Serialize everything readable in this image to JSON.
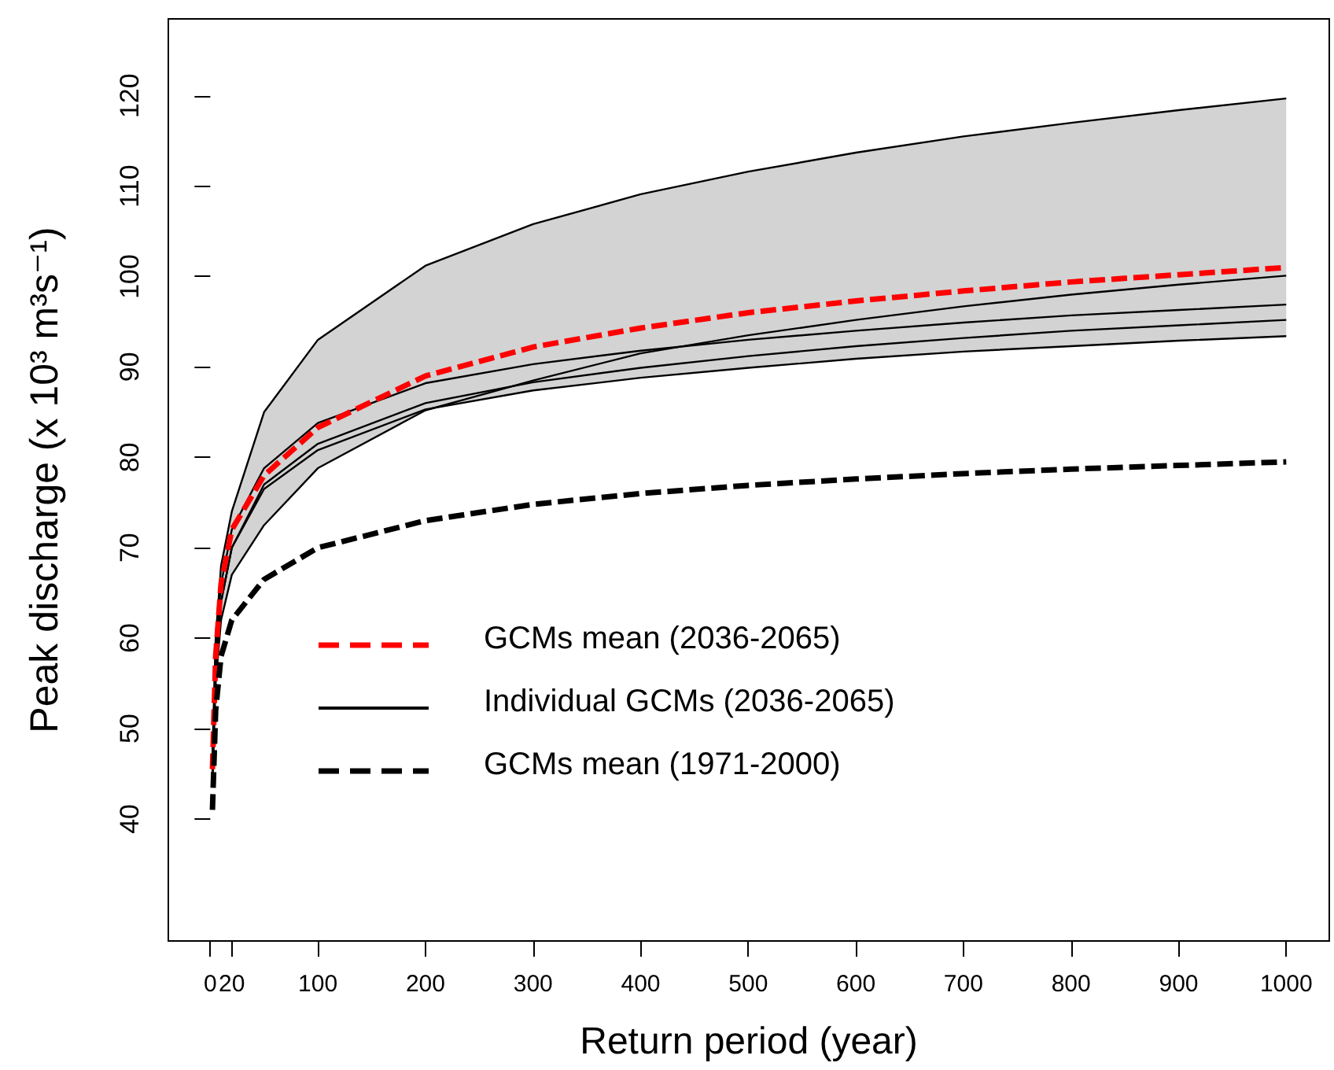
{
  "chart_data": {
    "type": "line",
    "xlabel": "Return period (year)",
    "ylabel": "Peak discharge (x 10³ m³s⁻¹)",
    "x": [
      2,
      5,
      10,
      20,
      50,
      100,
      200,
      300,
      400,
      500,
      600,
      700,
      800,
      900,
      1000
    ],
    "xlim": [
      -39,
      1040
    ],
    "xticks": [
      0,
      20,
      100,
      200,
      300,
      400,
      500,
      600,
      700,
      800,
      900,
      1000
    ],
    "ylim": [
      26.5,
      128.5
    ],
    "yticks": [
      40,
      50,
      60,
      70,
      80,
      90,
      100,
      110,
      120
    ],
    "grid": false,
    "legend": "center left",
    "marker": "none",
    "series": [
      {
        "name": "GCMs mean (2036-2065)",
        "color": "#ff0000",
        "line_style": "dashed",
        "values": [
          45.5,
          58,
          66,
          72,
          78,
          83.3,
          89,
          92.2,
          94.3,
          96,
          97.3,
          98.4,
          99.4,
          100.2,
          101
        ],
        "lower": [
          44,
          55,
          62,
          67,
          72.5,
          78.8,
          85.2,
          87.4,
          88.8,
          89.9,
          90.9,
          91.7,
          92.3,
          92.9,
          93.4
        ],
        "upper": [
          47,
          60,
          68,
          74,
          85,
          93,
          101.2,
          105.8,
          109.1,
          111.6,
          113.7,
          115.5,
          117,
          118.4,
          119.7
        ]
      },
      {
        "name": "Individual GCMs (2036-2065)",
        "color": "#000000",
        "line_style": "solid",
        "values": [
          47,
          60,
          68,
          74,
          85,
          93,
          101.2,
          105.8,
          109.1,
          111.6,
          113.7,
          115.5,
          117,
          118.4,
          119.7
        ]
      },
      {
        "color": "#000000",
        "line_style": "solid",
        "values": [
          44,
          55,
          62,
          67,
          72.5,
          78.8,
          85.2,
          88.5,
          91.5,
          93.5,
          95.2,
          96.7,
          98,
          99.1,
          100.1
        ]
      },
      {
        "color": "#000000",
        "line_style": "solid",
        "values": [
          46,
          59,
          66,
          72,
          78.8,
          83.8,
          88.2,
          90.3,
          91.8,
          93,
          94,
          94.9,
          95.7,
          96.3,
          96.9
        ]
      },
      {
        "color": "#000000",
        "line_style": "solid",
        "values": [
          45,
          57,
          64,
          70,
          77,
          81.5,
          86,
          88.3,
          89.9,
          91.2,
          92.3,
          93.2,
          94,
          94.6,
          95.2
        ]
      },
      {
        "color": "#000000",
        "line_style": "solid",
        "values": [
          45,
          57,
          64,
          70,
          76.5,
          80.8,
          85.3,
          87.4,
          88.8,
          89.9,
          90.9,
          91.7,
          92.3,
          92.9,
          93.4
        ]
      },
      {
        "name": "GCMs mean (1971-2000)",
        "color": "#000000",
        "line_style": "dashed",
        "values": [
          41,
          52,
          58,
          62,
          66.5,
          70,
          73,
          74.8,
          76,
          76.9,
          77.6,
          78.2,
          78.7,
          79.1,
          79.5
        ]
      }
    ]
  }
}
